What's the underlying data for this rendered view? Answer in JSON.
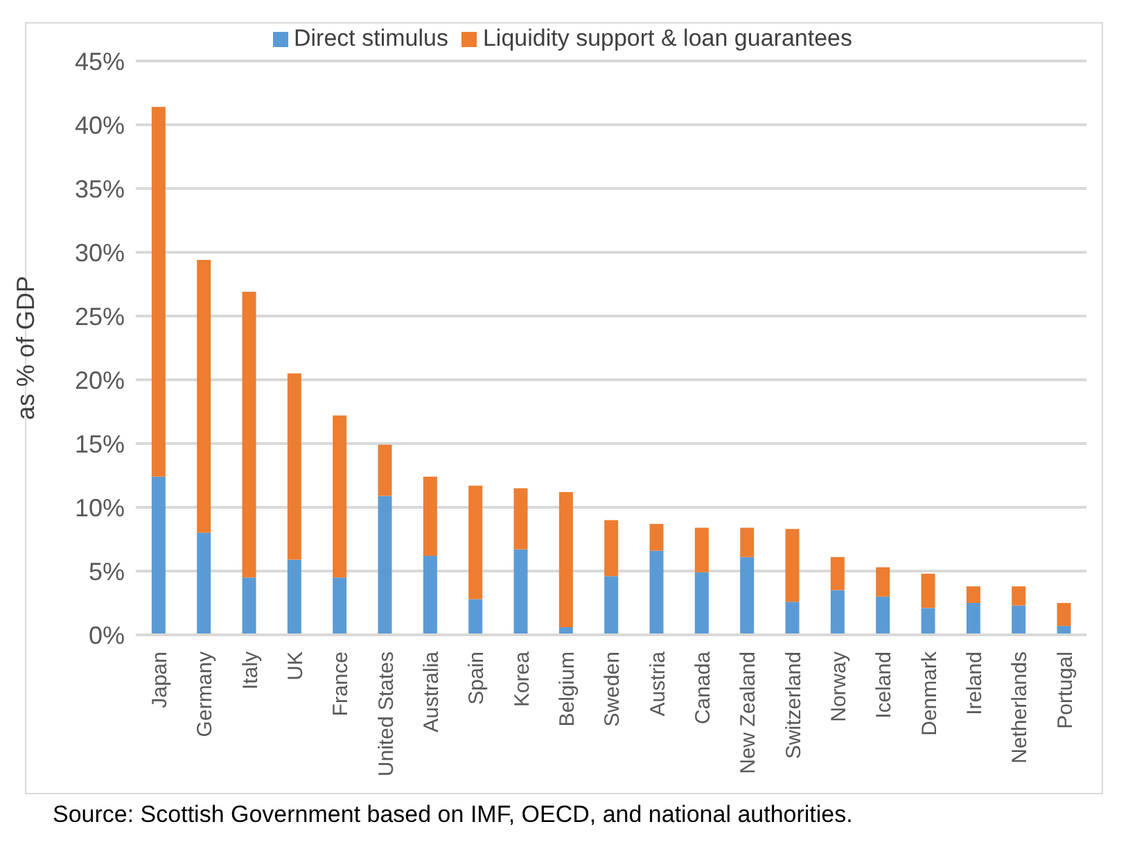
{
  "chart_data": {
    "type": "bar",
    "stacked": true,
    "ylabel": "as % of GDP",
    "categories": [
      "Japan",
      "Germany",
      "Italy",
      "UK",
      "France",
      "United States",
      "Australia",
      "Spain",
      "Korea",
      "Belgium",
      "Sweden",
      "Austria",
      "Canada",
      "New Zealand",
      "Switzerland",
      "Norway",
      "Iceland",
      "Denmark",
      "Ireland",
      "Netherlands",
      "Portugal"
    ],
    "series": [
      {
        "name": "Direct stimulus",
        "color": "#5b9bd5",
        "values": [
          12.4,
          8.0,
          4.5,
          5.9,
          4.5,
          10.9,
          6.2,
          2.8,
          6.7,
          0.6,
          4.6,
          6.6,
          4.9,
          6.1,
          2.6,
          3.5,
          3.0,
          2.1,
          2.5,
          2.3,
          0.7
        ]
      },
      {
        "name": "Liquidity support & loan guarantees",
        "color": "#ed7d31",
        "values": [
          29.0,
          21.4,
          22.4,
          14.6,
          12.7,
          4.0,
          6.2,
          8.9,
          4.8,
          10.6,
          4.4,
          2.1,
          3.5,
          2.3,
          5.7,
          2.6,
          2.3,
          2.7,
          1.3,
          1.5,
          1.8
        ]
      }
    ],
    "ylim": [
      0,
      45
    ],
    "yticks": [
      {
        "value": 0,
        "label": "0%"
      },
      {
        "value": 5,
        "label": "5%"
      },
      {
        "value": 10,
        "label": "10%"
      },
      {
        "value": 15,
        "label": "15%"
      },
      {
        "value": 20,
        "label": "20%"
      },
      {
        "value": 25,
        "label": "25%"
      },
      {
        "value": 30,
        "label": "30%"
      },
      {
        "value": 35,
        "label": "35%"
      },
      {
        "value": 40,
        "label": "40%"
      },
      {
        "value": 45,
        "label": "45%"
      }
    ],
    "grid": "y",
    "legend": "top",
    "annotations": [
      "Source: Scottish Government based on IMF, OECD, and national authorities."
    ]
  }
}
